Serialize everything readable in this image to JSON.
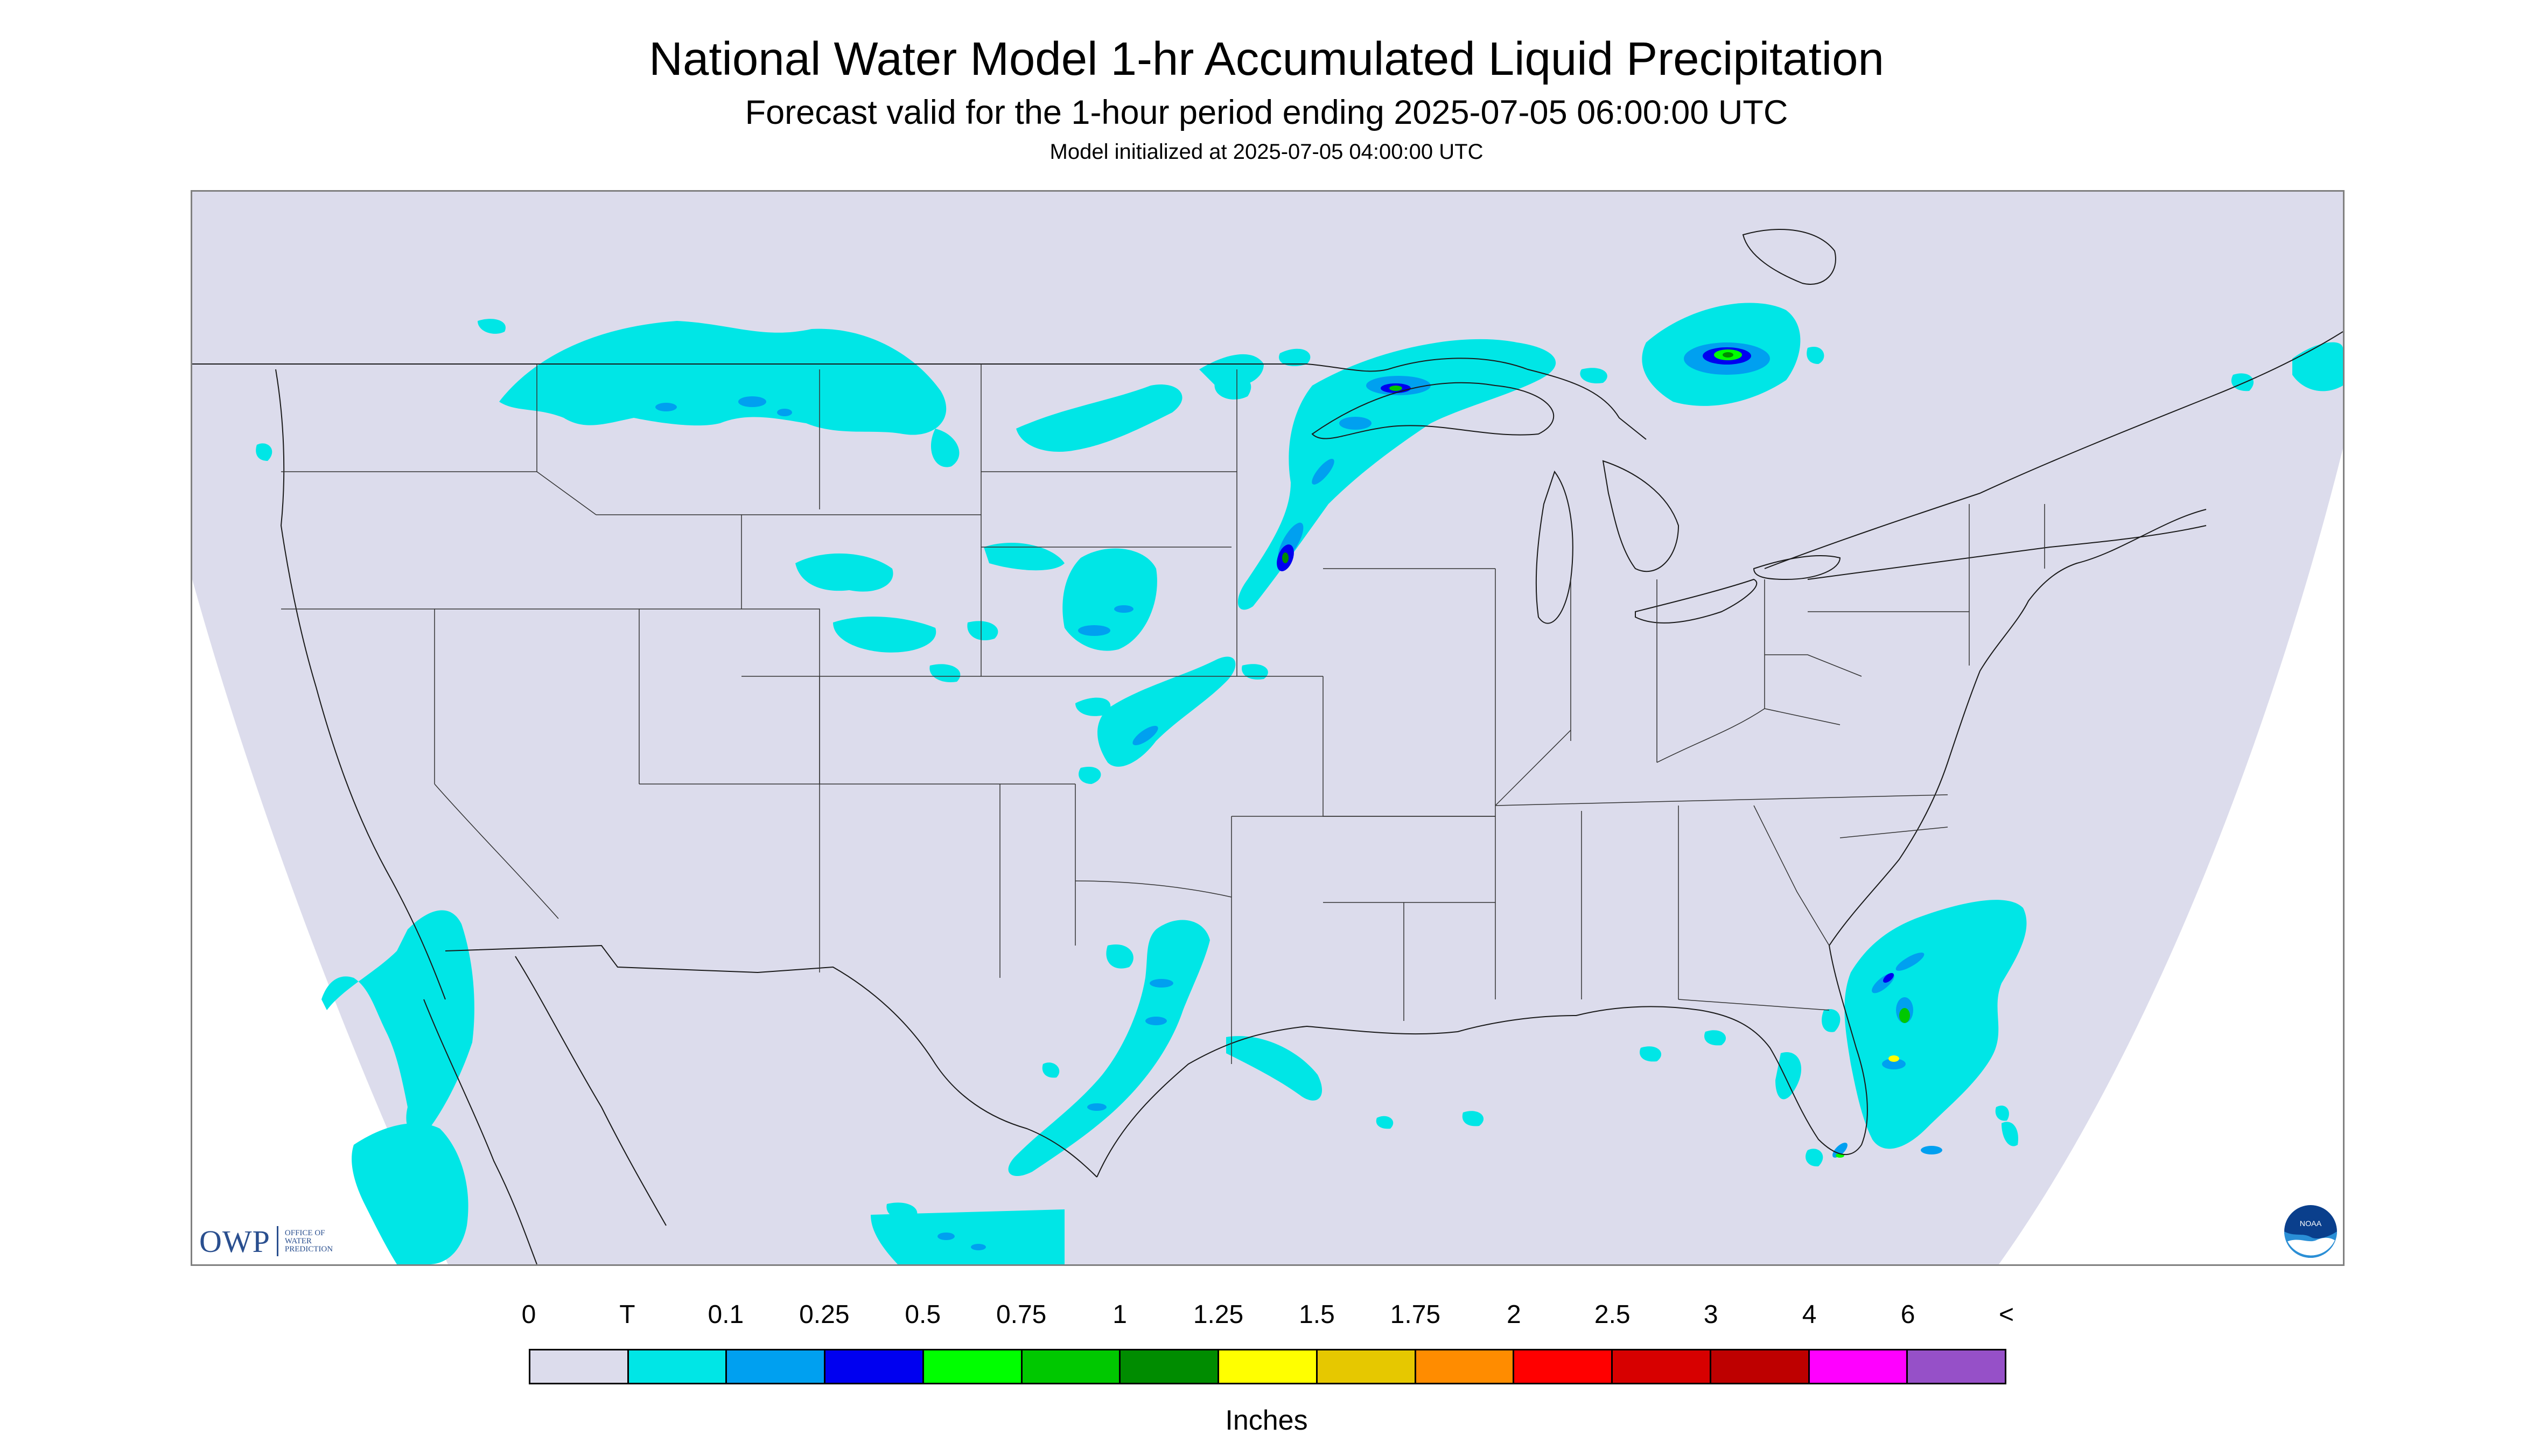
{
  "header": {
    "title": "National Water Model 1-hr Accumulated Liquid Precipitation",
    "subtitle": "Forecast valid for the 1-hour period ending 2025-07-05 06:00:00 UTC",
    "init": "Model initialized at 2025-07-05 04:00:00 UTC"
  },
  "map": {
    "background_color": "#dcdcec",
    "outside_color": "#ffffff",
    "boundary_color": "#1a1a1a"
  },
  "precip_areas": [
    {
      "region": "montana-north-dakota",
      "max_category": "0.5"
    },
    {
      "region": "wyoming-colorado",
      "max_category": "0.25"
    },
    {
      "region": "minnesota-lake-superior",
      "max_category": "1.25"
    },
    {
      "region": "ontario-north-of-superior",
      "max_category": "1.25"
    },
    {
      "region": "iowa-nebraska-kansas",
      "max_category": "0.5"
    },
    {
      "region": "texas",
      "max_category": "0.25"
    },
    {
      "region": "florida-atlantic",
      "max_category": "1.25"
    },
    {
      "region": "sonora-baja",
      "max_category": "0.1"
    }
  ],
  "logos": {
    "owp_text": "OWP",
    "owp_small_lines": [
      "OFFICE OF",
      "WATER",
      "PREDICTION"
    ],
    "noaa_text": "NOAA"
  },
  "legend": {
    "labels": [
      "0",
      "T",
      "0.1",
      "0.25",
      "0.5",
      "0.75",
      "1",
      "1.25",
      "1.5",
      "1.75",
      "2",
      "2.5",
      "3",
      "4",
      "6",
      "<"
    ],
    "colors": [
      "#dcdcec",
      "#00e6e6",
      "#00a0f0",
      "#0000f0",
      "#00ff00",
      "#00c800",
      "#008c00",
      "#ffff00",
      "#e6c800",
      "#ff8c00",
      "#ff0000",
      "#d70000",
      "#be0000",
      "#ff00ff",
      "#9650c8"
    ],
    "units": "Inches"
  }
}
